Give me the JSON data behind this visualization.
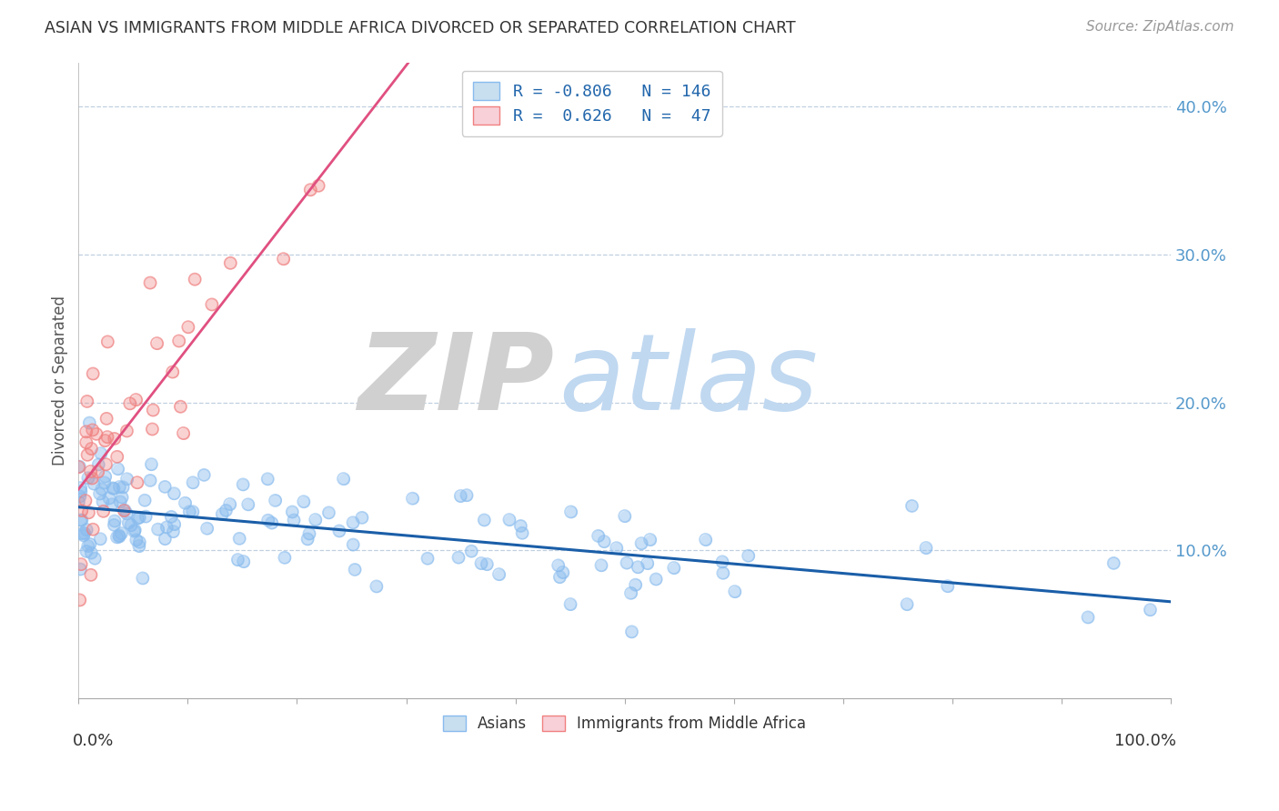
{
  "title": "ASIAN VS IMMIGRANTS FROM MIDDLE AFRICA DIVORCED OR SEPARATED CORRELATION CHART",
  "source": "Source: ZipAtlas.com",
  "ylabel": "Divorced or Separated",
  "yticks": [
    0.0,
    0.1,
    0.2,
    0.3,
    0.4
  ],
  "ytick_labels": [
    "",
    "10.0%",
    "20.0%",
    "30.0%",
    "40.0%"
  ],
  "xlim": [
    0.0,
    1.0
  ],
  "ylim": [
    0.0,
    0.43
  ],
  "blue_scatter_color": "#88bbee",
  "pink_scatter_color": "#f08080",
  "blue_line_color": "#1a5ea8",
  "pink_line_color": "#e05080",
  "background_color": "#ffffff",
  "grid_color": "#c0d0e0",
  "title_color": "#333333",
  "ytick_color": "#5599cc",
  "watermark_zip_color": "#d0d0d0",
  "watermark_atlas_color": "#c0d8f0",
  "seed": 12
}
